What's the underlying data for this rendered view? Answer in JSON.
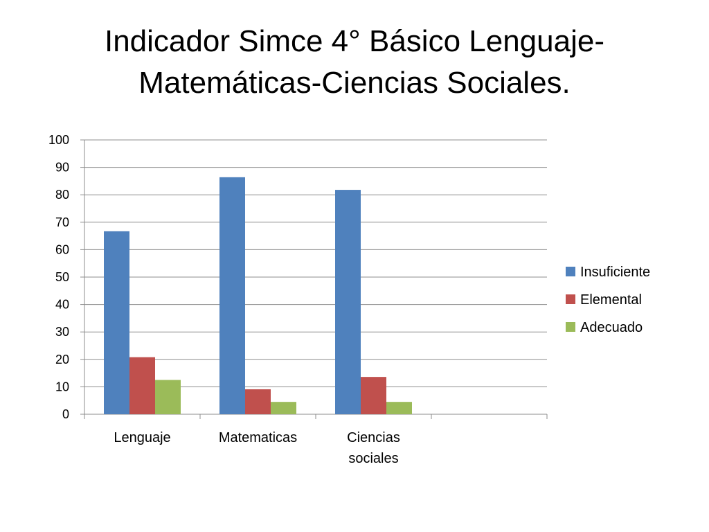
{
  "title_lines": [
    "Indicador Simce 4° Básico Lenguaje-",
    "Matemáticas-Ciencias Sociales."
  ],
  "chart_data": {
    "type": "bar",
    "title": "Indicador Simce 4° Básico Lenguaje-Matemáticas-Ciencias Sociales.",
    "xlabel": "",
    "ylabel": "",
    "categories": [
      "Lenguaje",
      "Matematicas",
      "Ciencias sociales",
      ""
    ],
    "category_label_lines": [
      [
        "Lenguaje"
      ],
      [
        "Matematicas"
      ],
      [
        "Ciencias",
        "sociales"
      ],
      []
    ],
    "series": [
      {
        "name": "Insuficiente",
        "values": [
          66.7,
          86.4,
          81.8,
          null
        ],
        "color": "#4F81BD"
      },
      {
        "name": "Elemental",
        "values": [
          20.8,
          9.1,
          13.6,
          null
        ],
        "color": "#C0504D"
      },
      {
        "name": "Adecuado",
        "values": [
          12.5,
          4.5,
          4.5,
          null
        ],
        "color": "#9BBB59"
      }
    ],
    "ylim": [
      0,
      100
    ],
    "yticks": [
      0,
      10,
      20,
      30,
      40,
      50,
      60,
      70,
      80,
      90,
      100
    ],
    "grid": true,
    "legend_position": "right"
  }
}
